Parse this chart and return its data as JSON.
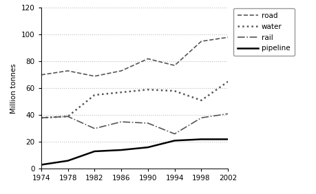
{
  "years": [
    1974,
    1978,
    1982,
    1986,
    1990,
    1994,
    1998,
    2002
  ],
  "road": [
    70,
    73,
    69,
    73,
    82,
    77,
    95,
    98
  ],
  "water": [
    38,
    39,
    55,
    57,
    59,
    58,
    51,
    65
  ],
  "rail": [
    38,
    39,
    30,
    35,
    34,
    26,
    38,
    41
  ],
  "pipeline": [
    3,
    6,
    13,
    14,
    16,
    21,
    22,
    22
  ],
  "ylabel": "Million tonnes",
  "xlim": [
    1974,
    2002
  ],
  "ylim": [
    0,
    120
  ],
  "yticks": [
    0,
    20,
    40,
    60,
    80,
    100,
    120
  ],
  "xticks": [
    1974,
    1978,
    1982,
    1986,
    1990,
    1994,
    1998,
    2002
  ],
  "road_color": "#555555",
  "water_color": "#555555",
  "rail_color": "#555555",
  "pipeline_color": "#000000",
  "background_color": "#ffffff",
  "grid_color": "#bbbbbb"
}
